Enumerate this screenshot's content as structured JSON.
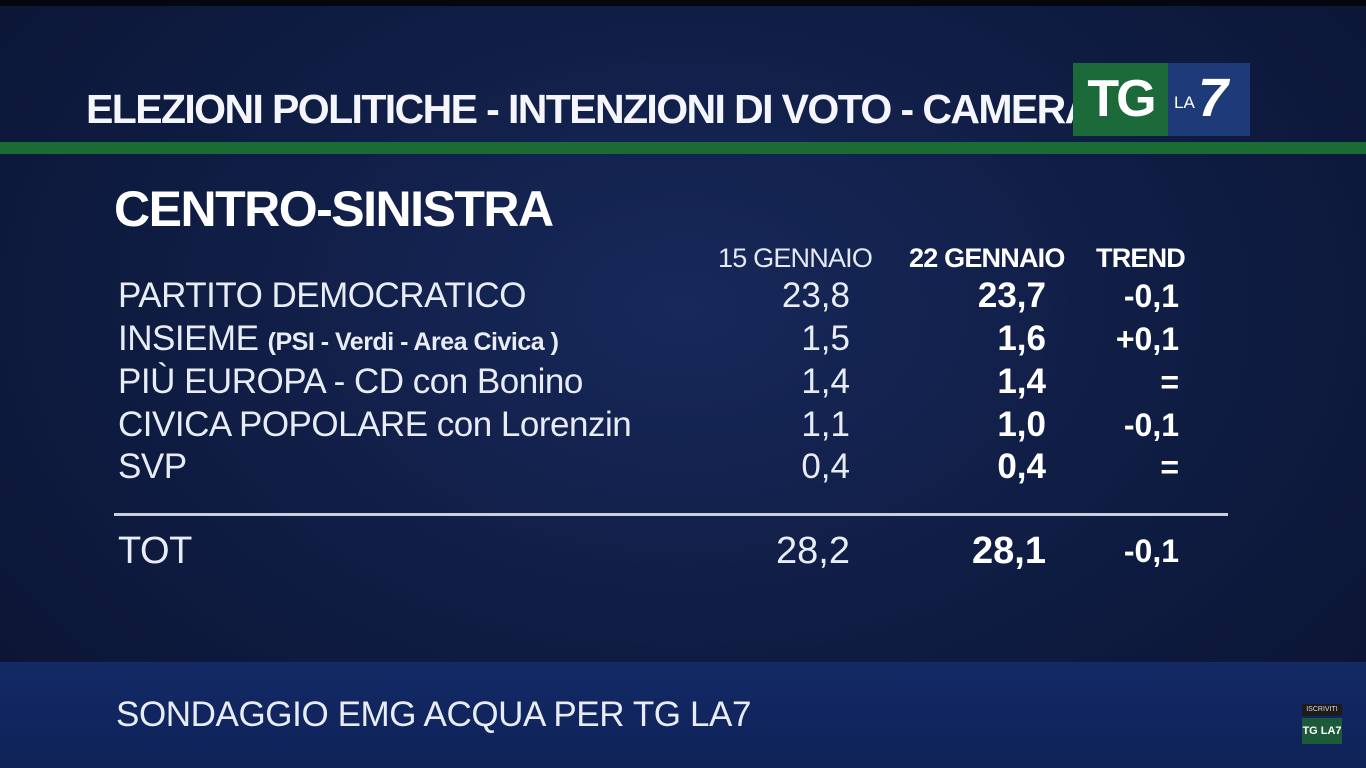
{
  "header": {
    "title": "ELEZIONI POLITICHE - INTENZIONI DI VOTO - CAMERA",
    "logo": {
      "tg": "TG",
      "la": "LA",
      "seven": "7"
    }
  },
  "colors": {
    "background": "#0f1c42",
    "green_rule": "#1b6b35",
    "logo_green": "#1c6a3a",
    "logo_blue": "#1e3a78",
    "footer": "#132a66"
  },
  "chart_data": {
    "type": "table",
    "title": "CENTRO-SINISTRA",
    "columns": [
      "15 GENNAIO",
      "22 GENNAIO",
      "TREND"
    ],
    "rows": [
      {
        "party": "PARTITO DEMOCRATICO",
        "detail": "",
        "jan15": "23,8",
        "jan22": "23,7",
        "trend": "-0,1"
      },
      {
        "party": "INSIEME",
        "detail": "(PSI - Verdi - Area Civica )",
        "jan15": "1,5",
        "jan22": "1,6",
        "trend": "+0,1"
      },
      {
        "party": "PIÙ EUROPA - CD con Bonino",
        "detail": "",
        "jan15": "1,4",
        "jan22": "1,4",
        "trend": "="
      },
      {
        "party": "CIVICA POPOLARE con Lorenzin",
        "detail": "",
        "jan15": "1,1",
        "jan22": "1,0",
        "trend": "-0,1"
      },
      {
        "party": "SVP",
        "detail": "",
        "jan15": "0,4",
        "jan22": "0,4",
        "trend": "="
      }
    ],
    "total": {
      "label": "TOT",
      "jan15": "28,2",
      "jan22": "28,1",
      "trend": "-0,1"
    }
  },
  "footer": {
    "source": "SONDAGGIO EMG ACQUA PER TG LA7"
  },
  "channel_badge": {
    "subscribe": "ISCRIVITI",
    "logo": "TG LA7"
  }
}
